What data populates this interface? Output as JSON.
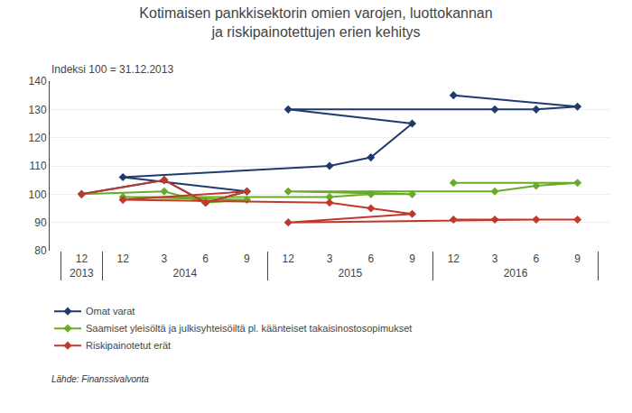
{
  "chart_data": {
    "type": "line",
    "title": "Kotimaisen pankkisektorin omien varojen, luottokannan\nja riskipainotettujen erien kehitys",
    "subtitle": "Indeksi 100 = 31.12.2013",
    "source": "Lähde: Finanssivalvonta",
    "categories": [
      [
        "2013",
        "12"
      ],
      [
        "2014",
        "3"
      ],
      [
        "2014",
        "6"
      ],
      [
        "2014",
        "9"
      ],
      [
        "2014",
        "12"
      ],
      [
        "2015",
        "3"
      ],
      [
        "2015",
        "6"
      ],
      [
        "2015",
        "9"
      ],
      [
        "2015",
        "12"
      ],
      [
        "2016",
        "3"
      ],
      [
        "2016",
        "6"
      ],
      [
        "2016",
        "9"
      ],
      [
        "2016",
        "12"
      ]
    ],
    "series": [
      {
        "name": "Omat varat",
        "color": "#1F3A6E",
        "values": [
          100,
          105,
          97,
          101,
          106,
          110,
          113,
          125,
          130,
          130,
          130,
          131,
          135
        ]
      },
      {
        "name": "Saamiset yleisöltä ja julkisyhteisöiltä pl. käänteiset takaisinostosopimukset",
        "color": "#6AAB25",
        "values": [
          100,
          101,
          97,
          98,
          99,
          99,
          100,
          100,
          101,
          101,
          103,
          104,
          104
        ]
      },
      {
        "name": "Riskipainotetut erät",
        "color": "#C0392B",
        "values": [
          100,
          105,
          97,
          101,
          98,
          97,
          95,
          93,
          90,
          91,
          91,
          91,
          91
        ]
      }
    ],
    "ylim": [
      80,
      140
    ],
    "yticks": [
      80,
      90,
      100,
      110,
      120,
      130,
      140
    ],
    "grid": true,
    "legend": "bottom",
    "marker": "diamond"
  }
}
